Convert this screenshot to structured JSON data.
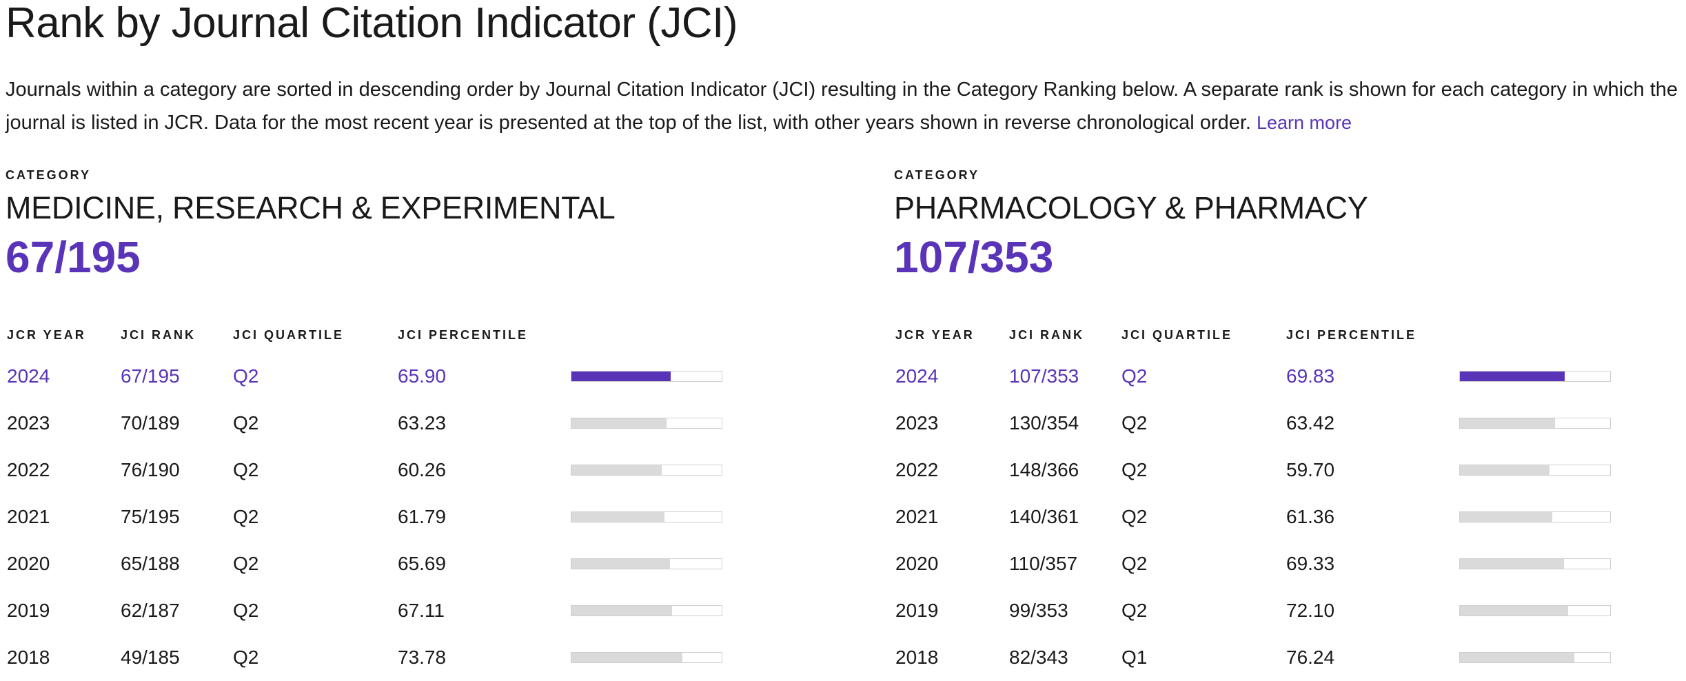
{
  "page": {
    "title": "Rank by Journal Citation Indicator (JCI)",
    "description": "Journals within a category are sorted in descending order by Journal Citation Indicator (JCI) resulting in the Category Ranking below. A separate rank is shown for each category in which the journal is listed in JCR. Data for the most recent year is presented at the top of the list, with other years shown in reverse chronological order.",
    "learn_more": "Learn more"
  },
  "headers": {
    "category": "CATEGORY",
    "year": "JCR YEAR",
    "rank": "JCI RANK",
    "quartile": "JCI QUARTILE",
    "percentile": "JCI PERCENTILE"
  },
  "colors": {
    "accent": "#5a34b8",
    "bar_fill": "#dadada",
    "bar_border": "#cfcfcf",
    "text": "#1a1a1a"
  },
  "categories": [
    {
      "name": "MEDICINE, RESEARCH & EXPERIMENTAL",
      "rank": "67/195",
      "rows": [
        {
          "year": "2024",
          "rank": "67/195",
          "quartile": "Q2",
          "percentile": "65.90"
        },
        {
          "year": "2023",
          "rank": "70/189",
          "quartile": "Q2",
          "percentile": "63.23"
        },
        {
          "year": "2022",
          "rank": "76/190",
          "quartile": "Q2",
          "percentile": "60.26"
        },
        {
          "year": "2021",
          "rank": "75/195",
          "quartile": "Q2",
          "percentile": "61.79"
        },
        {
          "year": "2020",
          "rank": "65/188",
          "quartile": "Q2",
          "percentile": "65.69"
        },
        {
          "year": "2019",
          "rank": "62/187",
          "quartile": "Q2",
          "percentile": "67.11"
        },
        {
          "year": "2018",
          "rank": "49/185",
          "quartile": "Q2",
          "percentile": "73.78"
        }
      ]
    },
    {
      "name": "PHARMACOLOGY & PHARMACY",
      "rank": "107/353",
      "rows": [
        {
          "year": "2024",
          "rank": "107/353",
          "quartile": "Q2",
          "percentile": "69.83"
        },
        {
          "year": "2023",
          "rank": "130/354",
          "quartile": "Q2",
          "percentile": "63.42"
        },
        {
          "year": "2022",
          "rank": "148/366",
          "quartile": "Q2",
          "percentile": "59.70"
        },
        {
          "year": "2021",
          "rank": "140/361",
          "quartile": "Q2",
          "percentile": "61.36"
        },
        {
          "year": "2020",
          "rank": "110/357",
          "quartile": "Q2",
          "percentile": "69.33"
        },
        {
          "year": "2019",
          "rank": "99/353",
          "quartile": "Q2",
          "percentile": "72.10"
        },
        {
          "year": "2018",
          "rank": "82/343",
          "quartile": "Q1",
          "percentile": "76.24"
        }
      ]
    }
  ]
}
